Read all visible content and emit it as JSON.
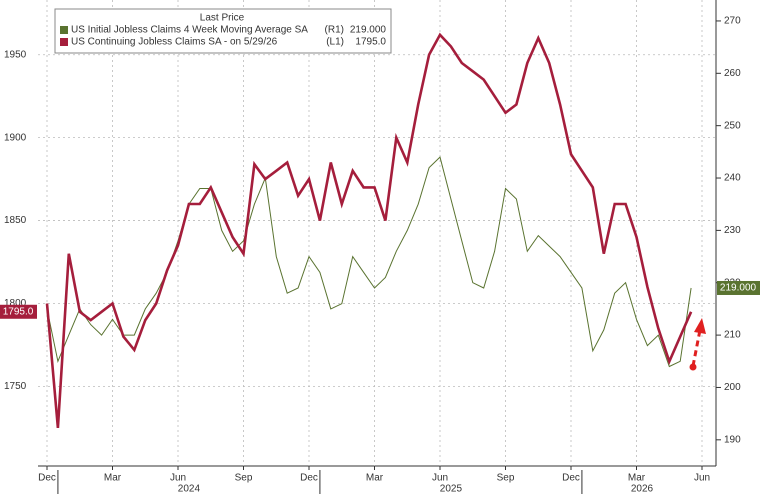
{
  "chart_data": {
    "type": "line",
    "legend_title": "Last Price",
    "categories": [
      "Dec",
      null,
      null,
      null,
      null,
      null,
      "Mar",
      null,
      null,
      null,
      null,
      null,
      "Jun",
      null,
      null,
      null,
      null,
      null,
      "Sep",
      null,
      null,
      null,
      null,
      null,
      "Dec",
      null,
      null,
      null,
      null,
      null,
      "Mar",
      null,
      null,
      null,
      null,
      null,
      "Jun",
      null,
      null,
      null,
      null,
      null,
      "Sep",
      null,
      null,
      null,
      null,
      null,
      "Dec",
      null,
      null,
      null,
      null,
      null,
      "Mar",
      null,
      null,
      null,
      null,
      null,
      "Jun"
    ],
    "year_labels": [
      "2024",
      "2025",
      "2026"
    ],
    "ylim": [
      1702,
      1983
    ],
    "yticks": [
      1750,
      1800,
      1850,
      1900,
      1950
    ],
    "y2lim": [
      185,
      274
    ],
    "y2ticks": [
      190,
      200,
      210,
      220,
      230,
      240,
      250,
      260,
      270
    ],
    "grid": true,
    "series": [
      {
        "name": "US Initial Jobless Claims 4 Week Moving Average SA",
        "axis_tag": "(R1)",
        "last_value_label": "219.000",
        "color": "#5a7330",
        "axis": "y2",
        "values": [
          215,
          205,
          210,
          215,
          212,
          210,
          213,
          210,
          210,
          215,
          218,
          222,
          228,
          235,
          238,
          238,
          230,
          226,
          228,
          235,
          240,
          225,
          218,
          219,
          225,
          222,
          215,
          216,
          225,
          222,
          219,
          221,
          226,
          230,
          235,
          242,
          244,
          236,
          228,
          220,
          219,
          226,
          238,
          236,
          226,
          229,
          227,
          225,
          222,
          219,
          207,
          211,
          218,
          220,
          213,
          208,
          210,
          204,
          205,
          219,
          null
        ]
      },
      {
        "name": "US Continuing Jobless Claims SA - on 5/29/26",
        "axis_tag": "(L1)",
        "last_value_label": "1795.0",
        "color": "#a51e3c",
        "axis": "y",
        "values": [
          1800,
          1725,
          1830,
          1795,
          1790,
          1795,
          1800,
          1780,
          1772,
          1790,
          1800,
          1820,
          1835,
          1860,
          1860,
          1870,
          1855,
          1840,
          1830,
          1884,
          1875,
          1880,
          1885,
          1865,
          1875,
          1850,
          1885,
          1860,
          1880,
          1870,
          1870,
          1850,
          1900,
          1885,
          1920,
          1950,
          1962,
          1955,
          1945,
          1940,
          1935,
          1925,
          1915,
          1920,
          1945,
          1960,
          1945,
          1920,
          1890,
          1880,
          1870,
          1830,
          1860,
          1860,
          1840,
          1810,
          1785,
          1765,
          1780,
          1795,
          null
        ]
      }
    ]
  }
}
